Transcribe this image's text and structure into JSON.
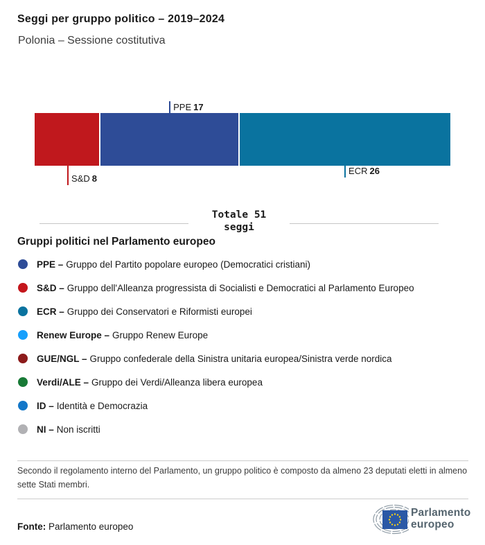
{
  "chart_data": {
    "type": "bar",
    "orientation": "horizontal_stacked",
    "title": "Seggi per gruppo politico – 2019–2024",
    "subtitle": "Polonia – Sessione costitutiva",
    "total_seats": 51,
    "total_label": {
      "line1": "Totale 51",
      "line2": "seggi"
    },
    "segments": [
      {
        "group": "S&D",
        "seats": 8,
        "color": "#c0181d",
        "label_position": "below"
      },
      {
        "group": "PPE",
        "seats": 17,
        "color": "#2e4c97",
        "label_position": "above"
      },
      {
        "group": "ECR",
        "seats": 26,
        "color": "#0a739f",
        "label_position": "below"
      }
    ]
  },
  "legend": {
    "heading": "Gruppi politici nel Parlamento europeo",
    "items": [
      {
        "abbr": "PPE –",
        "name": "Gruppo del Partito popolare europeo (Democratici cristiani)",
        "color": "#2e4c97"
      },
      {
        "abbr": "S&D –",
        "name": "Gruppo dell'Alleanza progressista di Socialisti e Democratici al Parlamento Europeo",
        "color": "#c4161c"
      },
      {
        "abbr": "ECR –",
        "name": "Gruppo dei Conservatori e Riformisti europei",
        "color": "#0a739f"
      },
      {
        "abbr": "Renew Europe –",
        "name": "Gruppo Renew Europe",
        "color": "#169ffc"
      },
      {
        "abbr": "GUE/NGL –",
        "name": "Gruppo confederale della Sinistra unitaria europea/Sinistra verde nordica",
        "color": "#8c1b1b"
      },
      {
        "abbr": "Verdi/ALE –",
        "name": "Gruppo dei Verdi/Alleanza libera europea",
        "color": "#187a36"
      },
      {
        "abbr": "ID –",
        "name": "Identità e Democrazia",
        "color": "#1377c8"
      },
      {
        "abbr": "NI –",
        "name": "Non iscritti",
        "color": "#b1b1b4"
      }
    ]
  },
  "footnote": "Secondo il regolamento interno del Parlamento, un gruppo politico è composto da almeno 23 deputati eletti in almeno sette Stati membri.",
  "source": {
    "label": "Fonte:",
    "text": "Parlamento europeo"
  },
  "logo": {
    "line1": "Parlamento",
    "line2": "europeo",
    "flag_color": "#2a58a6",
    "star_color": "#f7d117"
  }
}
